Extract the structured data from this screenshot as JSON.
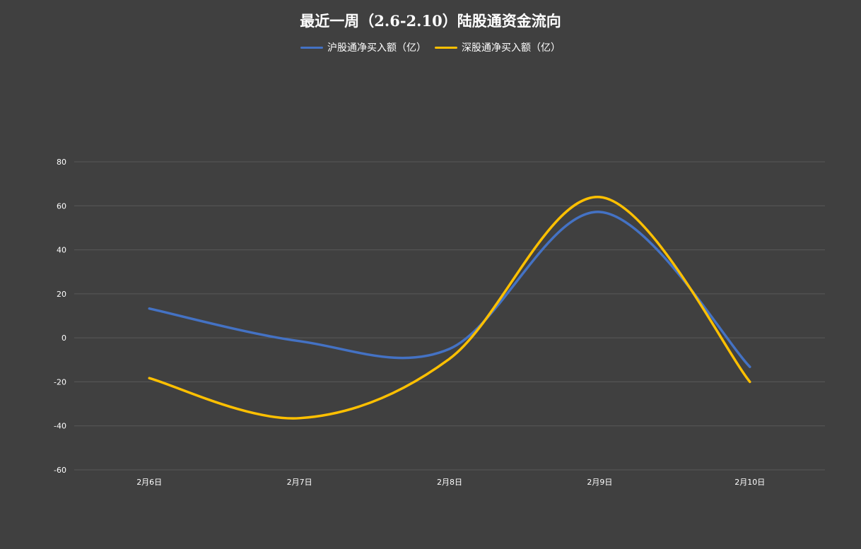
{
  "chart_data": {
    "type": "line",
    "title": "最近一周（2.6-2.10）陆股通资金流向",
    "xlabel": "",
    "ylabel": "",
    "categories": [
      "2月6日",
      "2月7日",
      "2月8日",
      "2月9日",
      "2月10日"
    ],
    "series": [
      {
        "name": "沪股通净买入额（亿）",
        "color": "#4472C4",
        "values": [
          13.3,
          -1.5,
          -5.0,
          57.2,
          -13.2
        ]
      },
      {
        "name": "深股通净买入额（亿）",
        "color": "#FFC000",
        "values": [
          -18.3,
          -36.5,
          -9.5,
          64.0,
          -20.0
        ]
      }
    ],
    "ylim": [
      -60,
      80
    ],
    "yticks": [
      80,
      60,
      40,
      20,
      0,
      -20,
      -40,
      -60
    ],
    "grid": true,
    "legend_position": "top",
    "background": "#404040",
    "gridline_color": "#595959"
  }
}
